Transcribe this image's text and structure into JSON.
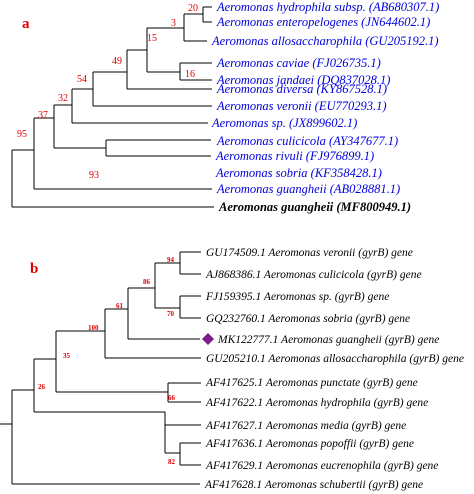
{
  "panel_a": {
    "label": "a",
    "taxa": [
      {
        "name": "Aeromonas hydrophila subsp. (AB680307.1)",
        "color": "#0000dd"
      },
      {
        "name": "Aeromonas enteropelogenes (JN644602.1)",
        "color": "#0000dd"
      },
      {
        "name": "Aeromonas allosaccharophila (GU205192.1)",
        "color": "#0000dd"
      },
      {
        "name": "Aeromonas caviae (FJ026735.1)",
        "color": "#0000dd"
      },
      {
        "name": "Aeromonas jandaei (DQ837028.1)",
        "color": "#0000dd"
      },
      {
        "name": "Aeromonas diversa (KY867528.1)",
        "color": "#0000dd"
      },
      {
        "name": "Aeromonas veronii (EU770293.1)",
        "color": "#0000dd"
      },
      {
        "name": "Aeromonas sp. (JX899602.1)",
        "color": "#0000dd"
      },
      {
        "name": "Aeromonas culicicola (AY347677.1)",
        "color": "#0000dd"
      },
      {
        "name": "Aeromonas rivuli (FJ976899.1)",
        "color": "#0000dd"
      },
      {
        "name": "Aeromonas sobria (KF358428.1)",
        "color": "#0000dd"
      },
      {
        "name": "Aeromonas guangheii (AB028881.1)",
        "color": "#0000dd"
      },
      {
        "name": "Aeromonas guangheii (MF800949.1)",
        "color": "#000000",
        "bold": true
      }
    ],
    "bootstrap": [
      "20",
      "3",
      "15",
      "49",
      "16",
      "54",
      "32",
      "37",
      "95",
      "93"
    ]
  },
  "panel_b": {
    "label": "b",
    "taxa": [
      "GU174509.1 Aeromonas veronii (gyrB) gene",
      "AJ868386.1 Aeromonas culicicola (gyrB) gene",
      "FJ159395.1 Aeromonas sp. (gyrB) gene",
      "GQ232760.1 Aeromonas sobria (gyrB) gene",
      "MK122777.1 Aeromonas guangheii (gyrB) gene",
      "GU205210.1 Aeromonas allosaccharophila (gyrB) gene",
      "AF417625.1 Aeromonas punctate (gyrB) gene",
      "AF417622.1 Aeromonas hydrophila (gyrB) gene",
      "AF417627.1 Aeromonas media (gyrB) gene",
      "AF417636.1 Aeromonas popoffii (gyrB) gene",
      "AF417629.1 Aeromonas eucrenophila (gyrB) gene",
      "AF417628.1 Aeromonas schubertii (gyrB) gene"
    ],
    "bootstrap": [
      "94",
      "86",
      "70",
      "61",
      "100",
      "35",
      "26",
      "66",
      "82"
    ],
    "marker_color": "#7a1f8a"
  }
}
